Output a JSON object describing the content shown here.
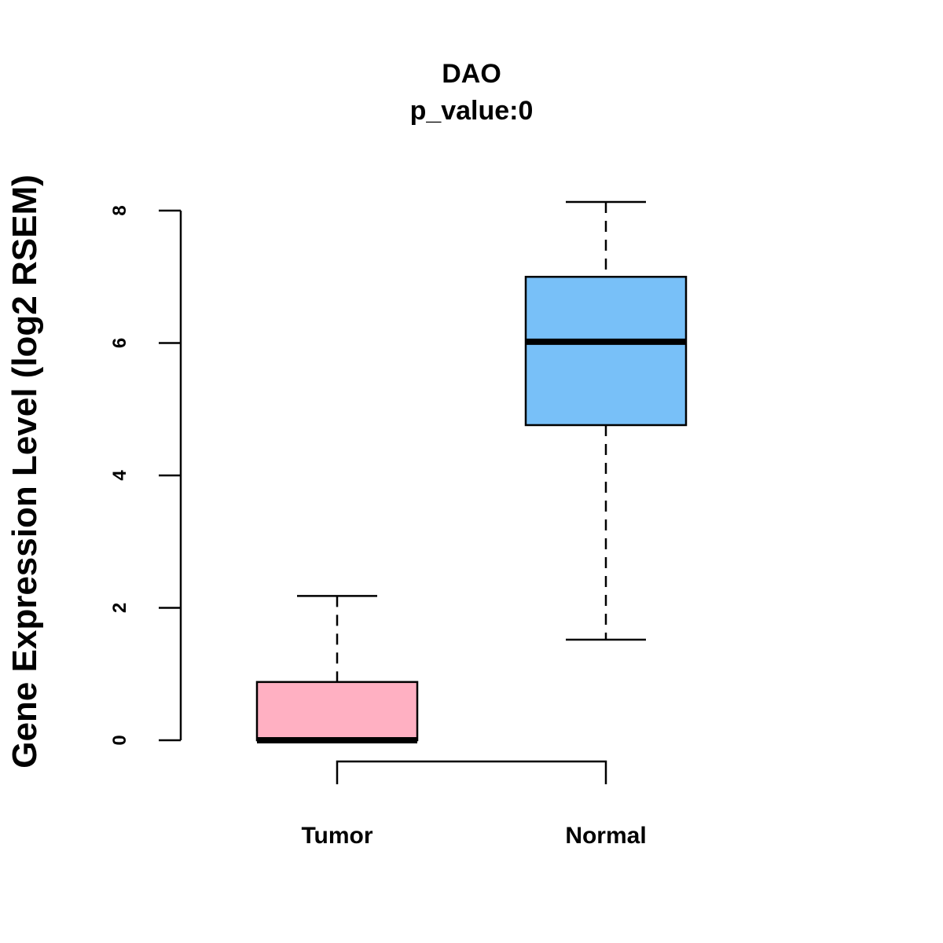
{
  "chart_data": {
    "type": "boxplot",
    "title": "DAO",
    "subtitle": "p_value:0",
    "xlabel": "",
    "ylabel": "Gene Expression Level (log2 RSEM)",
    "ylim": [
      0,
      8
    ],
    "yticks": [
      "0",
      "2",
      "4",
      "6",
      "8"
    ],
    "grid": false,
    "legend": "none",
    "categories": [
      "Tumor",
      "Normal"
    ],
    "boxes": [
      {
        "name": "Tumor",
        "color": "#FFB0C2",
        "whisker_low": 0,
        "q1": 0,
        "median": 0,
        "q3": 0.88,
        "whisker_high": 2.18
      },
      {
        "name": "Normal",
        "color": "#78C0F8",
        "whisker_low": 1.52,
        "q1": 4.76,
        "median": 6.02,
        "q3": 7.0,
        "whisker_high": 8.13
      }
    ],
    "comparison_bracket": [
      "Tumor",
      "Normal"
    ]
  }
}
